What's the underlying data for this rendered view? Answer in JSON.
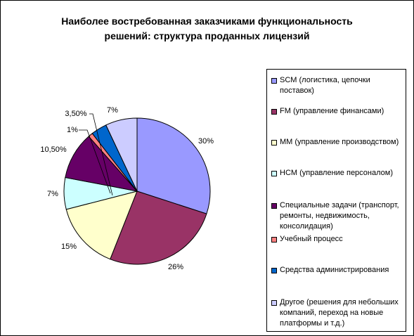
{
  "title": {
    "line1": "Наиболее востребованная заказчиками функциональность",
    "line2": "решений: структура проданных лицензий"
  },
  "chart_data": {
    "type": "pie",
    "title": "Наиболее востребованная заказчиками функциональность решений: структура проданных лицензий",
    "legend_position": "right",
    "slices": [
      {
        "name": "SCM (логистика, цепочки поставок)",
        "value": 30,
        "label": "30%",
        "color": "#9999ff"
      },
      {
        "name": "FM (управление финансами)",
        "value": 26,
        "label": "26%",
        "color": "#993366"
      },
      {
        "name": "MM (управление производством)",
        "value": 15,
        "label": "15%",
        "color": "#ffffcc"
      },
      {
        "name": "HCM (управление персоналом)",
        "value": 7,
        "label": "7%",
        "color": "#ccffff"
      },
      {
        "name": "Специальные задачи (транспорт, ремонты, недвижимость, консолидация)",
        "value": 10.5,
        "label": "10,50%",
        "color": "#660066"
      },
      {
        "name": "Учебный процесс",
        "value": 1,
        "label": "1%",
        "color": "#ff8080"
      },
      {
        "name": "Средства администрирования",
        "value": 3.5,
        "label": "3,50%",
        "color": "#0066cc"
      },
      {
        "name": "Другое (решения для небольших компаний, переход на новые платформы и т.д.)",
        "value": 7,
        "label": "7%",
        "color": "#ccccff"
      }
    ]
  },
  "legend": {
    "items": [
      {
        "label": "SCM (логистика, цепочки поставок)",
        "color": "#9999ff"
      },
      {
        "label": "FM (управление финансами)",
        "color": "#993366"
      },
      {
        "label": "MM (управление производством)",
        "color": "#ffffcc"
      },
      {
        "label": "HCM (управление персоналом)",
        "color": "#ccffff"
      },
      {
        "label": "Специальные задачи (транспорт, ремонты, недвижимость, консолидация)",
        "color": "#660066"
      },
      {
        "label": "Учебный процесс",
        "color": "#ff8080"
      },
      {
        "label": "Средства администрирования",
        "color": "#0066cc"
      },
      {
        "label": "Другое (решения для небольших компаний, переход на новые платформы и т.д.)",
        "color": "#ccccff"
      }
    ]
  }
}
